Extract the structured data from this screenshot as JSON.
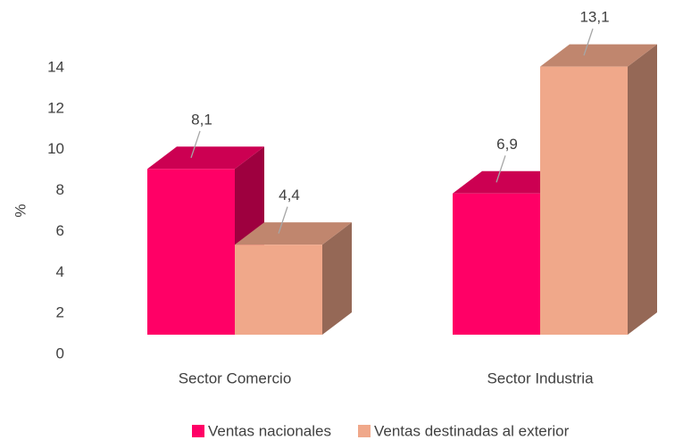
{
  "chart_data": {
    "type": "bar3d",
    "y_label": "%",
    "categories": [
      "Sector Comercio",
      "Sector Industria"
    ],
    "series": [
      {
        "name": "Ventas nacionales",
        "color": "#ff0066",
        "values": [
          8.1,
          6.9
        ],
        "value_labels": [
          "8,1",
          "6,9"
        ]
      },
      {
        "name": "Ventas destinadas al exterior",
        "color": "#f0a88a",
        "values": [
          4.4,
          13.1
        ],
        "value_labels": [
          "4,4",
          "13,1"
        ]
      }
    ],
    "ylim": [
      0,
      14
    ],
    "yticks": [
      0,
      2,
      4,
      6,
      8,
      10,
      12,
      14
    ],
    "grid": false,
    "legend": "bottom"
  }
}
